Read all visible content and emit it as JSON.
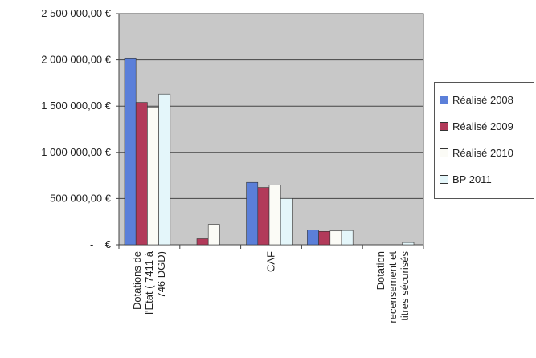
{
  "chart_data": {
    "type": "bar",
    "categories": [
      [
        "Dotations de",
        "l'Etat ( 7411 à",
        "746 DGD)"
      ],
      [
        ""
      ],
      [
        "CAF"
      ],
      [
        ""
      ],
      [
        "Dotation",
        "recensement et",
        "titres sécurisés"
      ]
    ],
    "series": [
      {
        "name": "Réalisé 2008",
        "color": "#5b7fd9",
        "values": [
          2020000,
          0,
          675000,
          160000,
          0
        ]
      },
      {
        "name": "Réalisé 2009",
        "color": "#b23a5a",
        "values": [
          1540000,
          65000,
          620000,
          145000,
          0
        ]
      },
      {
        "name": "Réalisé 2010",
        "color": "#fbfbf6",
        "values": [
          1490000,
          220000,
          645000,
          150000,
          0
        ]
      },
      {
        "name": "BP 2011",
        "color": "#e4f6fa",
        "values": [
          1630000,
          0,
          500000,
          155000,
          25000
        ]
      }
    ],
    "y_ticks": [
      {
        "value": 0,
        "label": "-    €"
      },
      {
        "value": 500000,
        "label": "500 000,00 €"
      },
      {
        "value": 1000000,
        "label": "1 000 000,00 €"
      },
      {
        "value": 1500000,
        "label": "1 500 000,00 €"
      },
      {
        "value": 2000000,
        "label": "2 000 000,00 €"
      },
      {
        "value": 2500000,
        "label": "2 500 000,00 €"
      }
    ],
    "ylim": [
      0,
      2500000
    ],
    "title": "",
    "xlabel": "",
    "ylabel": "",
    "grid": true,
    "legend_position": "right",
    "plot_background": "#c8c8c8"
  }
}
